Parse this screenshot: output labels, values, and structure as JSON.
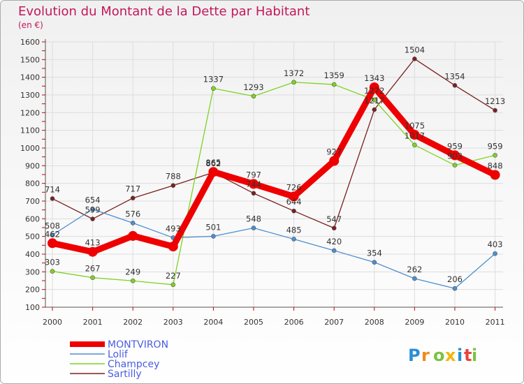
{
  "colors": {
    "title": "#c2185b",
    "legend_text": "#4a5ee0",
    "frame": "#aaaaaa",
    "grid": "#dddddd",
    "axis": "#555555",
    "tick_marks": "#cc0000"
  },
  "chart_data": {
    "type": "line",
    "title": "Evolution du Montant de la Dette par Habitant",
    "subtitle": "(en €)",
    "xlabel": "",
    "ylabel": "",
    "ylim": [
      100,
      1600
    ],
    "yticks": [
      100,
      200,
      300,
      400,
      500,
      600,
      700,
      800,
      900,
      1000,
      1100,
      1200,
      1300,
      1400,
      1500,
      1600
    ],
    "grid": true,
    "legend_position": "bottom-left",
    "categories": [
      "2000",
      "2001",
      "2002",
      "2003",
      "2004",
      "2005",
      "2006",
      "2007",
      "2008",
      "2009",
      "2010",
      "2011"
    ],
    "series": [
      {
        "name": "MONTVIRON",
        "color": "#ee0000",
        "values": [
          462,
          413,
          503,
          443,
          865,
          797,
          726,
          927,
          1343,
          1075,
          959,
          848
        ],
        "labels": [
          "462",
          "413",
          "",
          "",
          "865",
          "797",
          "726",
          "927",
          "1343",
          "1075",
          "959",
          "848"
        ]
      },
      {
        "name": "Lolif",
        "color": "#4d8fcf",
        "values": [
          508,
          654,
          576,
          493,
          501,
          548,
          485,
          420,
          354,
          262,
          206,
          403
        ],
        "labels": [
          "508",
          "654",
          "576",
          "493",
          "501",
          "548",
          "485",
          "420",
          "354",
          "262",
          "206",
          "403"
        ]
      },
      {
        "name": "Champcey",
        "color": "#7ed321",
        "values": [
          303,
          267,
          249,
          227,
          1337,
          1293,
          1372,
          1359,
          1272,
          1017,
          903,
          959
        ],
        "labels": [
          "303",
          "267",
          "249",
          "227",
          "1337",
          "1293",
          "1372",
          "1359",
          "1272",
          "1017",
          "903",
          "959"
        ]
      },
      {
        "name": "Sartilly",
        "color": "#7a2020",
        "values": [
          714,
          599,
          717,
          788,
          862,
          744,
          644,
          547,
          1217,
          1504,
          1354,
          1213
        ],
        "labels": [
          "714",
          "599",
          "717",
          "788",
          "862",
          "744",
          "644",
          "547",
          "1217",
          "1504",
          "1354",
          "1213"
        ]
      }
    ]
  },
  "logo": {
    "letters": [
      "P",
      "r",
      "o",
      "x",
      "i",
      "t",
      "i"
    ],
    "colors": [
      "#2a8fd6",
      "#f08a1c",
      "#7cc242",
      "#f2b705",
      "#2a8fd6",
      "#e8453c",
      "#7cc242"
    ]
  }
}
